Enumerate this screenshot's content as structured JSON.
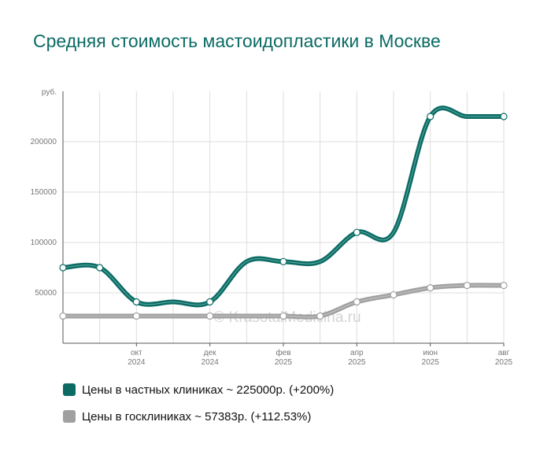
{
  "chart_data": {
    "type": "line",
    "title": "Средняя стоимость мастоидопластики в Москве",
    "y_unit": "руб.",
    "ylim": [
      0,
      250000
    ],
    "y_ticks": [
      "50000",
      "100000",
      "150000",
      "200000"
    ],
    "x": [
      "2024-08",
      "2024-09",
      "2024-10",
      "2024-11",
      "2024-12",
      "2025-01",
      "2025-02",
      "2025-03",
      "2025-04",
      "2025-05",
      "2025-06",
      "2025-07",
      "2025-08"
    ],
    "x_tick_labels": [
      {
        "month": "окт",
        "year": "2024"
      },
      {
        "month": "дек",
        "year": "2024"
      },
      {
        "month": "фев",
        "year": "2025"
      },
      {
        "month": "апр",
        "year": "2025"
      },
      {
        "month": "июн",
        "year": "2025"
      },
      {
        "month": "авг",
        "year": "2025"
      }
    ],
    "series": [
      {
        "name": "Цены в частных клиниках ~ 225000р. (+200%)",
        "color": "#0b6b64",
        "values": [
          75000,
          75000,
          41000,
          41000,
          41000,
          81000,
          81000,
          81000,
          110000,
          110000,
          225000,
          225000,
          225000
        ]
      },
      {
        "name": "Цены в госклиниках ~ 57383р. (+112.53%)",
        "color": "#a0a0a0",
        "values": [
          27000,
          27000,
          27000,
          27000,
          27000,
          27000,
          27000,
          27000,
          41000,
          48000,
          55000,
          57383,
          57383
        ]
      }
    ],
    "grid": true,
    "legend_position": "bottom-left",
    "watermark": "© KrasotaiMedicina.ru"
  }
}
